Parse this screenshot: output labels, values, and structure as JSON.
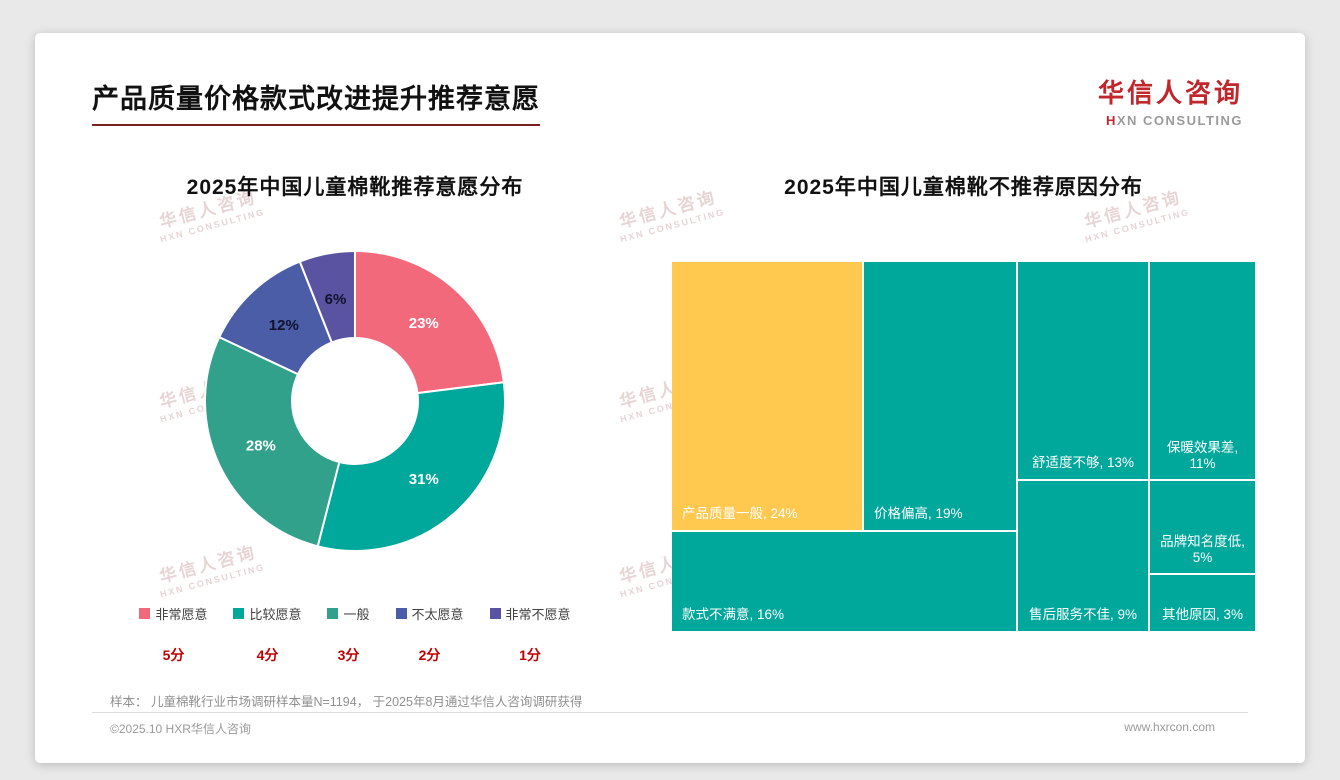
{
  "page": {
    "title": "产品质量价格款式改进提升推荐意愿",
    "logo": {
      "name": "华信人咨询",
      "sub": "HXN CONSULTING"
    },
    "watermark": {
      "line1": "华信人咨询",
      "line2": "HXN CONSULTING"
    },
    "footnote": "样本： 儿童棉靴行业市场调研样本量N=1194， 于2025年8月通过华信人咨询调研获得",
    "footer": {
      "left": "©2025.10 HXR华信人咨询",
      "right": "www.hxrcon.com"
    }
  },
  "chart_data": [
    {
      "type": "pie",
      "title": "2025年中国儿童棉靴推荐意愿分布",
      "labels": [
        "非常愿意",
        "比较愿意",
        "一般",
        "不太愿意",
        "非常不愿意"
      ],
      "values": [
        23,
        31,
        28,
        12,
        6
      ],
      "scores": [
        "5分",
        "4分",
        "3分",
        "2分",
        "1分"
      ],
      "colors": [
        "#F2697C",
        "#00A79B",
        "#31A18C",
        "#4A5DA6",
        "#5A53A2"
      ],
      "label_colors": [
        "#ffffff",
        "#ffffff",
        "#ffffff",
        "#10132b",
        "#10132b"
      ],
      "donut_hole": true,
      "legend_position": "bottom"
    },
    {
      "type": "treemap",
      "title": "2025年中国儿童棉靴不推荐原因分布",
      "items": [
        {
          "label": "产品质量一般",
          "value": 24,
          "color": "#FFC84E"
        },
        {
          "label": "价格偏高",
          "value": 19,
          "color": "#00A79B"
        },
        {
          "label": "款式不满意",
          "value": 16,
          "color": "#00A79B"
        },
        {
          "label": "舒适度不够",
          "value": 13,
          "color": "#00A79B"
        },
        {
          "label": "保暖效果差",
          "value": 11,
          "color": "#00A79B"
        },
        {
          "label": "售后服务不佳",
          "value": 9,
          "color": "#00A79B"
        },
        {
          "label": "品牌知名度低",
          "value": 5,
          "color": "#00A79B"
        },
        {
          "label": "其他原因",
          "value": 3,
          "color": "#00A79B"
        }
      ]
    }
  ]
}
